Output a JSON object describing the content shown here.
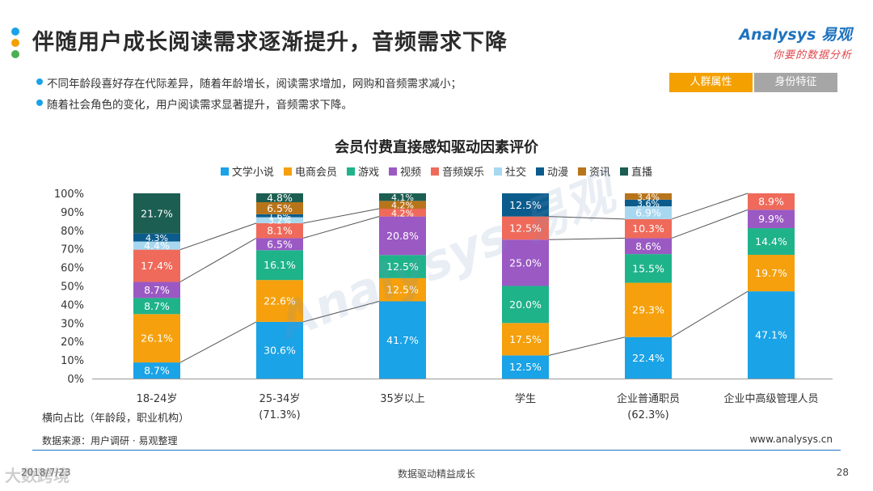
{
  "header": {
    "title": "伴随用户成长阅读需求逐渐提升，音频需求下降",
    "logo_main": "Analysys 易观",
    "logo_sub": "你要的数据分析"
  },
  "bullets": [
    "不同年龄段喜好存在代际差异，随着年龄增长，阅读需求增加，网购和音频需求减小；",
    "随着社会角色的变化，用户阅读需求显著提升，音频需求下降。"
  ],
  "tabs": [
    {
      "label": "人群属性",
      "active": true
    },
    {
      "label": "身份特征",
      "active": false
    }
  ],
  "colors": {
    "title_dots": [
      "#1aa3e6",
      "#f4a000",
      "#4caf50"
    ],
    "series": [
      "#1aa3e6",
      "#f5a00c",
      "#1fb38a",
      "#9b59c4",
      "#ef6a5a",
      "#a8d8f0",
      "#0b5c8c",
      "#b8741a",
      "#1c5e52"
    ]
  },
  "chart_data": {
    "type": "bar",
    "stacked": true,
    "title": "会员付费直接感知驱动因素评价",
    "categories": [
      "18-24岁",
      "25-34岁",
      "35岁以上",
      "学生",
      "企业普通职员",
      "企业中高级管理人员"
    ],
    "ylim": [
      0,
      100
    ],
    "yticks": [
      "0%",
      "10%",
      "20%",
      "30%",
      "40%",
      "50%",
      "60%",
      "70%",
      "80%",
      "90%",
      "100%"
    ],
    "legend_position": "top-center",
    "series": [
      {
        "name": "文学小说",
        "values": [
          8.7,
          30.6,
          41.7,
          12.5,
          22.4,
          47.1
        ],
        "labels": [
          "8.7%",
          "30.6%",
          "41.7%",
          "12.5%",
          "22.4%",
          "47.1%"
        ]
      },
      {
        "name": "电商会员",
        "values": [
          26.1,
          22.6,
          12.5,
          17.5,
          29.3,
          19.7
        ],
        "labels": [
          "26.1%",
          "22.6%",
          "12.5%",
          "17.5%",
          "29.3%",
          "19.7%"
        ]
      },
      {
        "name": "游戏",
        "values": [
          8.7,
          16.1,
          12.5,
          20.0,
          15.5,
          14.4
        ],
        "labels": [
          "8.7%",
          "16.1%",
          "12.5%",
          "20.0%",
          "15.5%",
          "14.4%"
        ]
      },
      {
        "name": "视频",
        "values": [
          8.7,
          6.5,
          20.8,
          25.0,
          8.6,
          9.9
        ],
        "labels": [
          "8.7%",
          "6.5%",
          "20.8%",
          "25.0%",
          "8.6%",
          "9.9%"
        ]
      },
      {
        "name": "音频娱乐",
        "values": [
          17.4,
          8.1,
          4.2,
          12.5,
          10.3,
          8.9
        ],
        "labels": [
          "17.4%",
          "8.1%",
          "4.2%",
          "12.5%",
          "10.3%",
          "8.9%"
        ]
      },
      {
        "name": "社交",
        "values": [
          4.4,
          3.2,
          0,
          0,
          6.9,
          0
        ],
        "labels": [
          "4.4%",
          "3.2%",
          "",
          "",
          "6.9%",
          ""
        ]
      },
      {
        "name": "动漫",
        "values": [
          4.3,
          1.6,
          0,
          12.5,
          3.6,
          0
        ],
        "labels": [
          "4.3%",
          "1.6%",
          "",
          "12.5%",
          "3.6%",
          ""
        ]
      },
      {
        "name": "资讯",
        "values": [
          0,
          6.5,
          4.2,
          0,
          3.4,
          0
        ],
        "labels": [
          "",
          "6.5%",
          "4.2%",
          "",
          "3.4%",
          ""
        ]
      },
      {
        "name": "直播",
        "values": [
          21.7,
          4.8,
          4.1,
          0,
          0,
          0
        ],
        "labels": [
          "21.7%",
          "4.8%",
          "4.1%",
          "",
          "",
          ""
        ]
      }
    ]
  },
  "share_row": {
    "label": "横向占比（年龄段，职业机构）",
    "values": [
      "",
      "(71.3%)",
      "",
      "",
      "(62.3%)",
      ""
    ]
  },
  "footer": {
    "source": "数据来源：用户调研 · 易观整理",
    "website": "www.analysys.cn",
    "date": "2018/7/23",
    "center": "数据驱动精益成长",
    "page": "28",
    "watermark": "大数跨境"
  }
}
